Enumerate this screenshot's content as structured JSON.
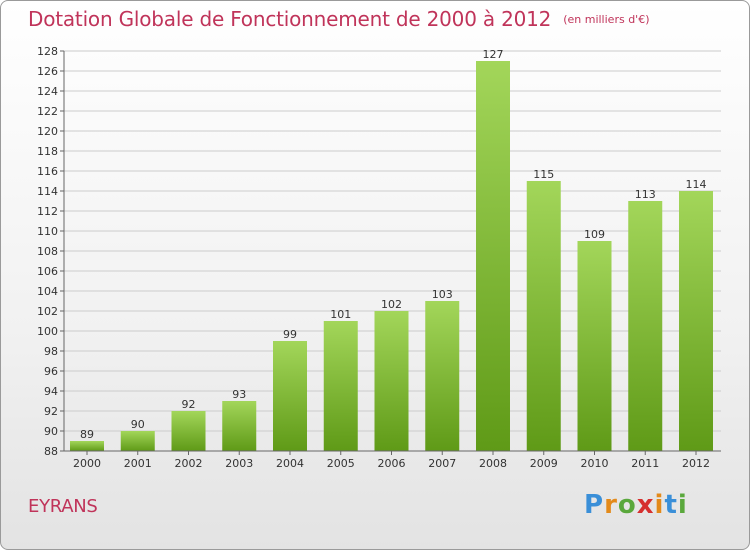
{
  "header": {
    "title": "Dotation Globale de Fonctionnement de 2000 à 2012",
    "subtitle": "(en milliers d'€)"
  },
  "footer": {
    "place": "EYRANS",
    "logo": {
      "letters": [
        "P",
        "r",
        "o",
        "x",
        "i",
        "t",
        "i"
      ],
      "colors": [
        "#3a8fd8",
        "#e38a1a",
        "#5aa83c",
        "#d6302f",
        "#e38a1a",
        "#3a8fd8",
        "#5aa83c"
      ]
    }
  },
  "colors": {
    "bar_top": "#a3d65a",
    "bar_bottom": "#5f9a17",
    "grid": "#cccccc",
    "title": "#c0345a"
  },
  "chart_data": {
    "type": "bar",
    "categories": [
      "2000",
      "2001",
      "2002",
      "2003",
      "2004",
      "2005",
      "2006",
      "2007",
      "2008",
      "2009",
      "2010",
      "2011",
      "2012"
    ],
    "values": [
      89,
      90,
      92,
      93,
      99,
      101,
      102,
      103,
      127,
      115,
      109,
      113,
      114
    ],
    "title": "Dotation Globale de Fonctionnement de 2000 à 2012",
    "subtitle": "(en milliers d'€)",
    "xlabel": "",
    "ylabel": "",
    "ylim": [
      88,
      128
    ],
    "yticks": [
      88,
      90,
      92,
      94,
      96,
      98,
      100,
      102,
      104,
      106,
      108,
      110,
      112,
      114,
      116,
      118,
      120,
      122,
      124,
      126,
      128
    ],
    "grid": true,
    "data_labels": true
  }
}
